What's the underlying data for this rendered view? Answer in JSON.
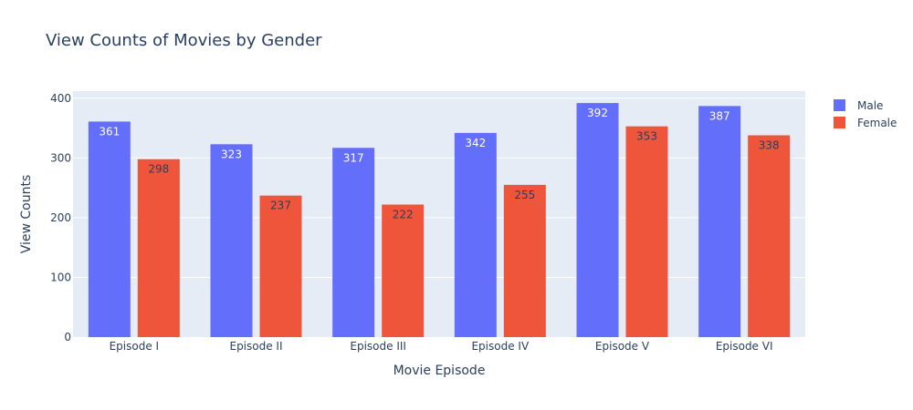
{
  "chart_data": {
    "type": "bar",
    "title": "View Counts of Movies by Gender",
    "xlabel": "Movie Episode",
    "ylabel": "View Counts",
    "categories": [
      "Episode I",
      "Episode II",
      "Episode III",
      "Episode IV",
      "Episode V",
      "Episode VI"
    ],
    "series": [
      {
        "name": "Male",
        "values": [
          361,
          323,
          317,
          342,
          392,
          387
        ],
        "color": "#636efa",
        "label_color": "#ffffff"
      },
      {
        "name": "Female",
        "values": [
          298,
          237,
          222,
          255,
          353,
          338
        ],
        "color": "#ef553b",
        "label_color": "#2a3f5f"
      }
    ],
    "ylim": [
      0,
      412
    ],
    "yticks": [
      0,
      100,
      200,
      300,
      400
    ],
    "grid": true,
    "legend_position": "top-right",
    "plot_background": "#e5ecf6"
  }
}
